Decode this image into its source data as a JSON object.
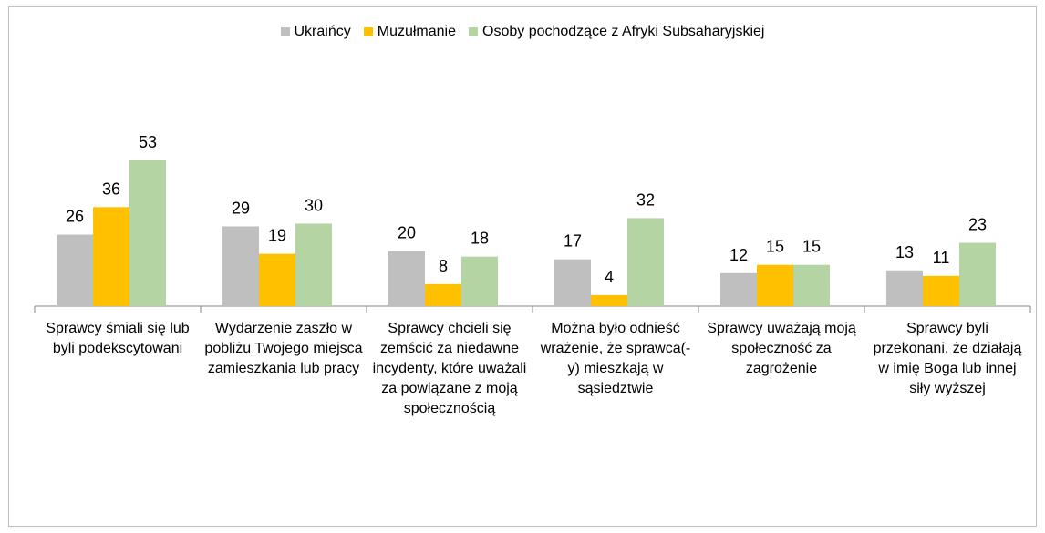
{
  "chart_data": {
    "type": "bar",
    "categories": [
      "Sprawcy śmiali się lub byli podekscytowani",
      "Wydarzenie zaszło w pobliżu Twojego miejsca zamieszkania lub pracy",
      "Sprawcy chcieli się zemścić za niedawne incydenty, które uważali za powiązane z moją społecznością",
      "Można było odnieść wrażenie, że sprawca(-y) mieszkają w sąsiedztwie",
      "Sprawcy uważają moją społeczność za zagrożenie",
      "Sprawcy byli przekonani, że działają w imię Boga lub innej siły wyższej"
    ],
    "series": [
      {
        "name": "Ukraińcy",
        "color": "#bfbfbf",
        "values": [
          26,
          29,
          20,
          17,
          12,
          13
        ]
      },
      {
        "name": "Muzułmanie",
        "color": "#ffc000",
        "values": [
          36,
          19,
          8,
          4,
          15,
          11
        ]
      },
      {
        "name": "Osoby pochodzące z Afryki Subsaharyjskiej",
        "color": "#b4d5a3",
        "values": [
          53,
          30,
          18,
          32,
          15,
          23
        ]
      }
    ],
    "legend": "top"
  }
}
